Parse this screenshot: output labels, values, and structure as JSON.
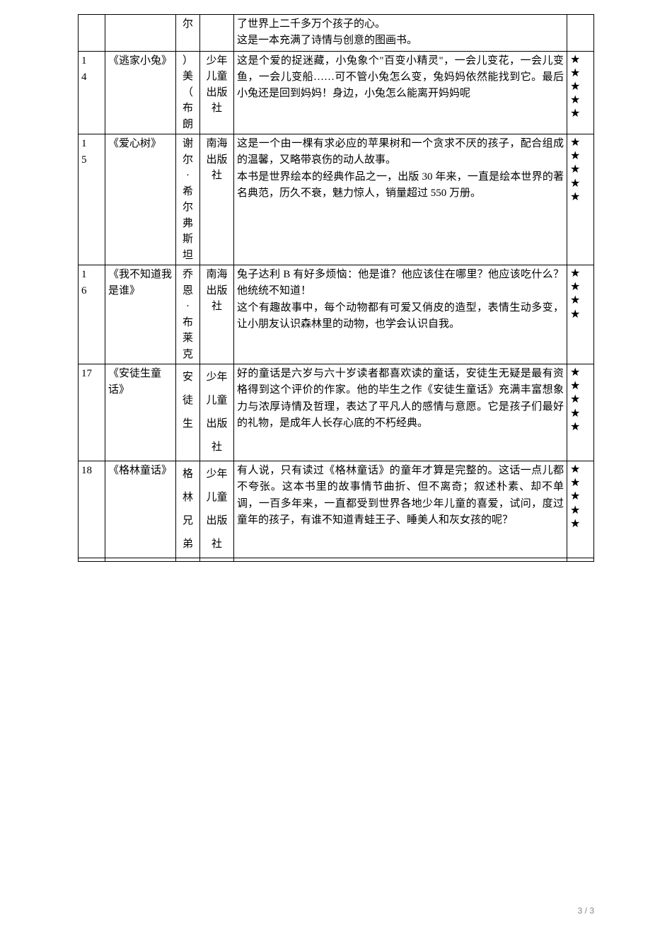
{
  "table": {
    "rows": [
      {
        "idx": "",
        "title": "",
        "author": "尔",
        "publisher": "",
        "desc": "了世界上二千多万个孩子的心。\n这是一本充满了诗情与创意的图画书。",
        "stars": ""
      },
      {
        "idx": "1\n4",
        "title": "《逃家小兔》",
        "author": "）\n美\n（\n布\n朗",
        "publisher": "少年\n儿童\n出版\n社",
        "desc": "这是个爱的捉迷藏，小兔象个\"百变小精灵\"，一会儿变花，一会儿变鱼，一会儿变船……可不管小兔怎么变，兔妈妈依然能找到它。最后小兔还是回到妈妈！身边，小兔怎么能离开妈妈呢",
        "stars": "★\n★\n★\n★\n★"
      },
      {
        "idx": "1\n5",
        "title": "《爱心树》",
        "author": "谢\n尔\n·\n希\n尔\n弗\n斯\n坦",
        "publisher": "南海\n出版\n社",
        "desc": "这是一个由一棵有求必应的苹果树和一个贪求不厌的孩子，配合组成的温馨，又略带哀伤的动人故事。\n本书是世界绘本的经典作品之一，出版 30 年来，一直是绘本世界的著名典范，历久不衰，魅力惊人，销量超过 550 万册。",
        "stars": "★\n★\n★\n★\n★"
      },
      {
        "idx": "1\n6",
        "title": "《我不知道我是谁》",
        "author": "乔\n恩\n·\n布\n莱\n克",
        "publisher": "南海\n出版\n社",
        "desc": "兔子达利 B 有好多烦恼：他是谁？他应该住在哪里？他应该吃什么？他统统不知道！\n这个有趣故事中，每个动物都有可爱又俏皮的造型，表情生动多变，让小朋友认识森林里的动物，也学会认识自我。",
        "stars": "★\n★\n★\n★"
      },
      {
        "idx": "17",
        "title": "《安徒生童话》",
        "author": "安\n徒\n生",
        "publisher": "少年\n儿童\n出版\n社",
        "desc": "好的童话是六岁与六十岁读者都喜欢读的童话，安徒生无疑是最有资格得到这个评价的作家。他的毕生之作《安徒生童话》充满丰富想象力与浓厚诗情及哲理，表达了平凡人的感情与意愿。它是孩子们最好的礼物，是成年人长存心底的不朽经典。",
        "stars": "★\n★\n★\n★\n★"
      },
      {
        "idx": "18",
        "title": "《格林童话》",
        "author": "格\n林\n兄\n弟",
        "publisher": "少年\n儿童\n出版\n社",
        "desc": "有人说，只有读过《格林童话》的童年才算是完整的。这话一点儿都不夸张。这本书里的故事情节曲折、但不离奇；叙述朴素、却不单调，一百多年来，一直都受到世界各地少年儿童的喜爱，试问，度过童年的孩子，有谁不知道青蛙王子、睡美人和灰女孩的呢？",
        "stars": "★\n★\n★\n★\n★"
      },
      {
        "idx": "",
        "title": "",
        "author": "",
        "publisher": "",
        "desc": "",
        "stars": ""
      }
    ]
  },
  "pageNumber": "3 / 3"
}
